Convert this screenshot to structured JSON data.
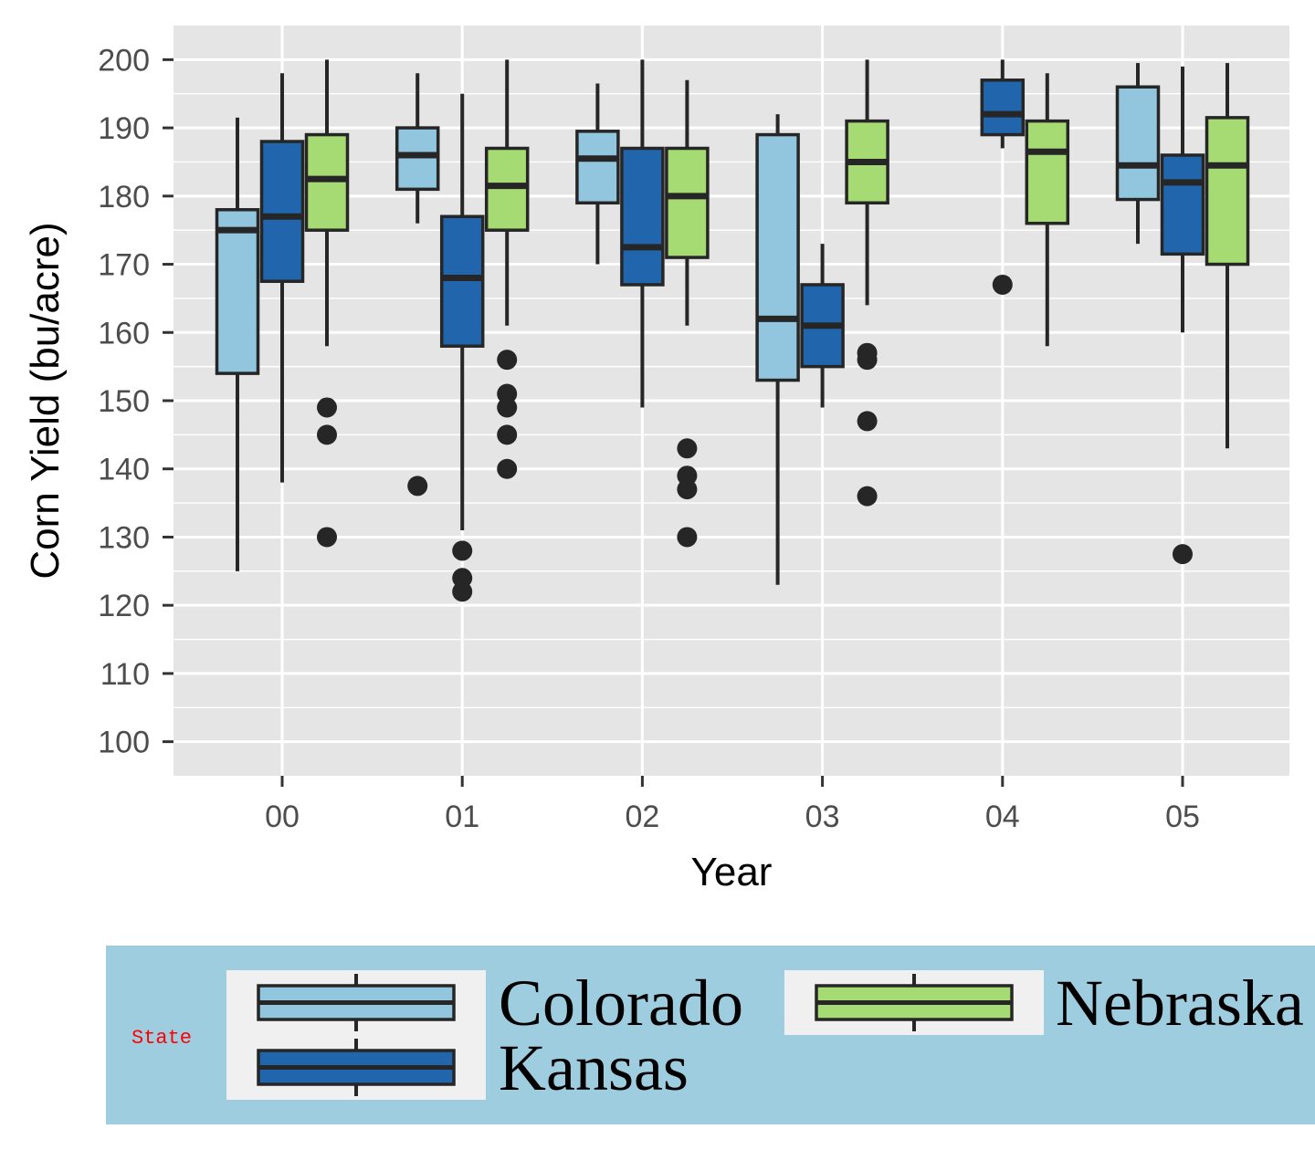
{
  "chart_data": {
    "type": "box",
    "title": "",
    "xlabel": "Year",
    "ylabel": "Corn Yield (bu/acre)",
    "categories": [
      "00",
      "01",
      "02",
      "03",
      "04",
      "05"
    ],
    "ylim": [
      95,
      205
    ],
    "yticks": [
      100,
      110,
      120,
      130,
      140,
      150,
      160,
      170,
      180,
      190,
      200
    ],
    "grid": true,
    "legend": {
      "title": "State",
      "position": "bottom",
      "entries": [
        "Colorado",
        "Kansas",
        "Nebraska"
      ]
    },
    "series": [
      {
        "name": "Colorado",
        "color": "#92c5de",
        "boxes": [
          {
            "x": "00",
            "min": 125,
            "q1": 154,
            "median": 175,
            "q3": 178,
            "max": 191.5,
            "outliers": []
          },
          {
            "x": "01",
            "min": 176,
            "q1": 181,
            "median": 186,
            "q3": 190,
            "max": 198,
            "outliers": [
              137.5
            ]
          },
          {
            "x": "02",
            "min": 170,
            "q1": 179,
            "median": 185.5,
            "q3": 189.5,
            "max": 196.5,
            "outliers": []
          },
          {
            "x": "03",
            "min": 123,
            "q1": 153,
            "median": 162,
            "q3": 189,
            "max": 192,
            "outliers": []
          },
          null,
          {
            "x": "05",
            "min": 173,
            "q1": 179.5,
            "median": 184.5,
            "q3": 196,
            "max": 199.5,
            "outliers": []
          }
        ]
      },
      {
        "name": "Kansas",
        "color": "#2166ac",
        "boxes": [
          {
            "x": "00",
            "min": 138,
            "q1": 167.5,
            "median": 177,
            "q3": 188,
            "max": 198,
            "outliers": []
          },
          {
            "x": "01",
            "min": 131,
            "q1": 158,
            "median": 168,
            "q3": 177,
            "max": 195,
            "outliers": [
              128,
              124,
              122
            ]
          },
          {
            "x": "02",
            "min": 149,
            "q1": 167,
            "median": 172.5,
            "q3": 187,
            "max": 200,
            "outliers": []
          },
          {
            "x": "03",
            "min": 149,
            "q1": 155,
            "median": 161,
            "q3": 167,
            "max": 173,
            "outliers": []
          },
          {
            "x": "04",
            "min": 187,
            "q1": 189,
            "median": 192,
            "q3": 197,
            "max": 200,
            "outliers": [
              167
            ]
          },
          {
            "x": "05",
            "min": 160,
            "q1": 171.5,
            "median": 182,
            "q3": 186,
            "max": 199,
            "outliers": [
              127.5
            ]
          }
        ]
      },
      {
        "name": "Nebraska",
        "color": "#a6db73",
        "boxes": [
          {
            "x": "00",
            "min": 158,
            "q1": 175,
            "median": 182.5,
            "q3": 189,
            "max": 200,
            "outliers": [
              149,
              145,
              130
            ]
          },
          {
            "x": "01",
            "min": 161,
            "q1": 175,
            "median": 181.5,
            "q3": 187,
            "max": 200,
            "outliers": [
              156,
              151,
              149,
              145,
              140
            ]
          },
          {
            "x": "02",
            "min": 161,
            "q1": 171,
            "median": 180,
            "q3": 187,
            "max": 197,
            "outliers": [
              143,
              139,
              137,
              130
            ]
          },
          {
            "x": "03",
            "min": 164,
            "q1": 179,
            "median": 185,
            "q3": 191,
            "max": 200,
            "outliers": [
              157,
              156,
              147,
              136
            ]
          },
          {
            "x": "04",
            "min": 158,
            "q1": 176,
            "median": 186.5,
            "q3": 191,
            "max": 198,
            "outliers": []
          },
          {
            "x": "05",
            "min": 143,
            "q1": 170,
            "median": 184.5,
            "q3": 191.5,
            "max": 199.5,
            "outliers": []
          }
        ]
      }
    ]
  },
  "colors": {
    "panel_background": "#e5e5e5",
    "grid": "#ffffff",
    "outline": "#262626",
    "legend_background": "#9fcde0",
    "legend_key_background": "#f0f0f0",
    "legend_title": "#ff0000"
  }
}
